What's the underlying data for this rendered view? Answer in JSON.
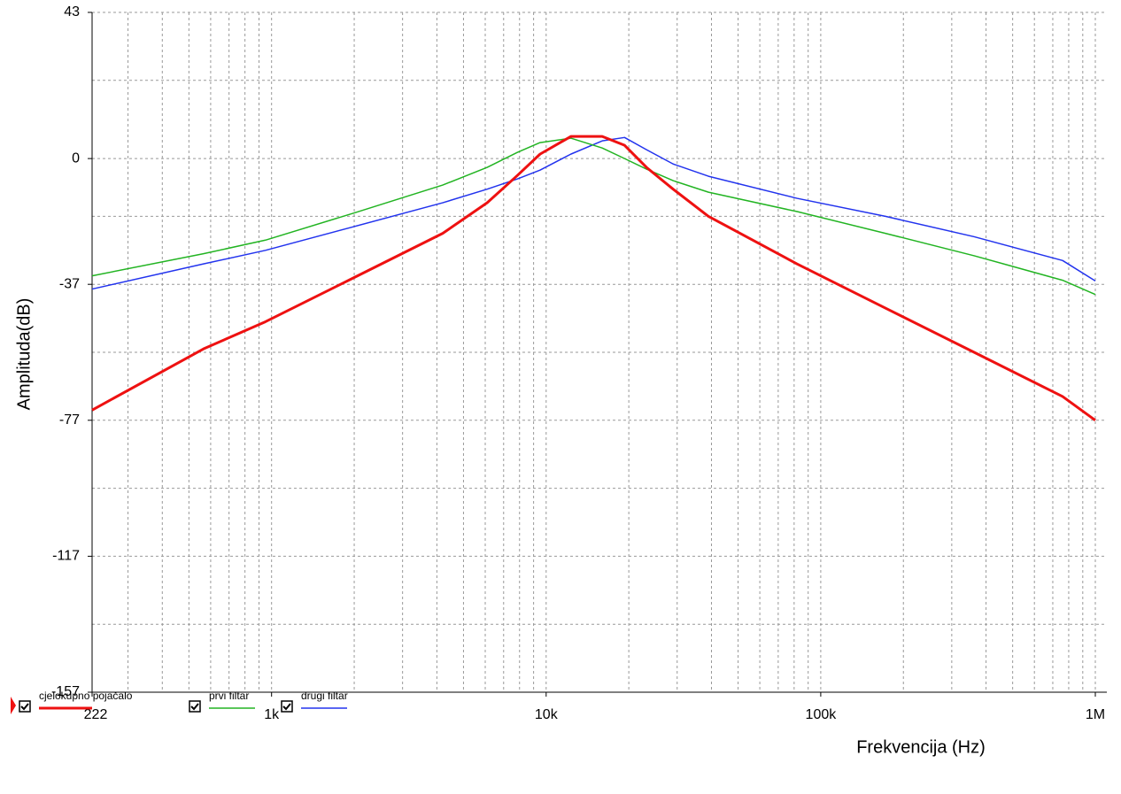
{
  "chart_data": {
    "type": "line",
    "x_label": "Frekvencija (Hz)",
    "y_label": "Amplituda(dB)",
    "x": [
      222,
      565,
      950,
      2000,
      4200,
      6100,
      7850,
      9500,
      12300,
      16000,
      19300,
      23200,
      29000,
      39000,
      82000,
      172000,
      362000,
      760000,
      1000000
    ],
    "series": [
      {
        "name": "cjelokupno pojačalo",
        "color": "#ee1111",
        "width": 3,
        "values": [
          -74,
          -56,
          -48,
          -35,
          -22,
          -13,
          -5,
          1.3,
          6.5,
          6.5,
          3.9,
          -2.6,
          -9,
          -17,
          -31,
          -44,
          -57,
          -70,
          -77
        ]
      },
      {
        "name": "prvi filtar",
        "color": "#22b422",
        "width": 1.5,
        "values": [
          -34.5,
          -28,
          -24,
          -16,
          -7.8,
          -2.6,
          1.8,
          4.7,
          6,
          3.1,
          0,
          -3.1,
          -6.5,
          -9.9,
          -15.6,
          -22,
          -28.6,
          -35.8,
          -40
        ]
      },
      {
        "name": "drugi filtar",
        "color": "#2233ee",
        "width": 1.5,
        "values": [
          -38.4,
          -31,
          -27,
          -20,
          -13,
          -9,
          -6,
          -3.4,
          1.3,
          5.2,
          6.2,
          2.6,
          -1.6,
          -5.2,
          -11.7,
          -17,
          -23,
          -30,
          -36
        ]
      }
    ],
    "xscale": "log",
    "xlim": [
      222,
      1000000
    ],
    "xticks": [
      222,
      {
        "value": 1000,
        "label": "1k"
      },
      {
        "value": 10000,
        "label": "10k"
      },
      {
        "value": 100000,
        "label": "100k"
      },
      {
        "value": 1000000,
        "label": "1M"
      }
    ],
    "ylim": [
      -157,
      43
    ],
    "yticks": [
      43,
      0,
      -37,
      -77,
      -117,
      -157
    ],
    "yminor": [
      23,
      -17,
      -57,
      -97,
      -137
    ],
    "grid": true
  }
}
